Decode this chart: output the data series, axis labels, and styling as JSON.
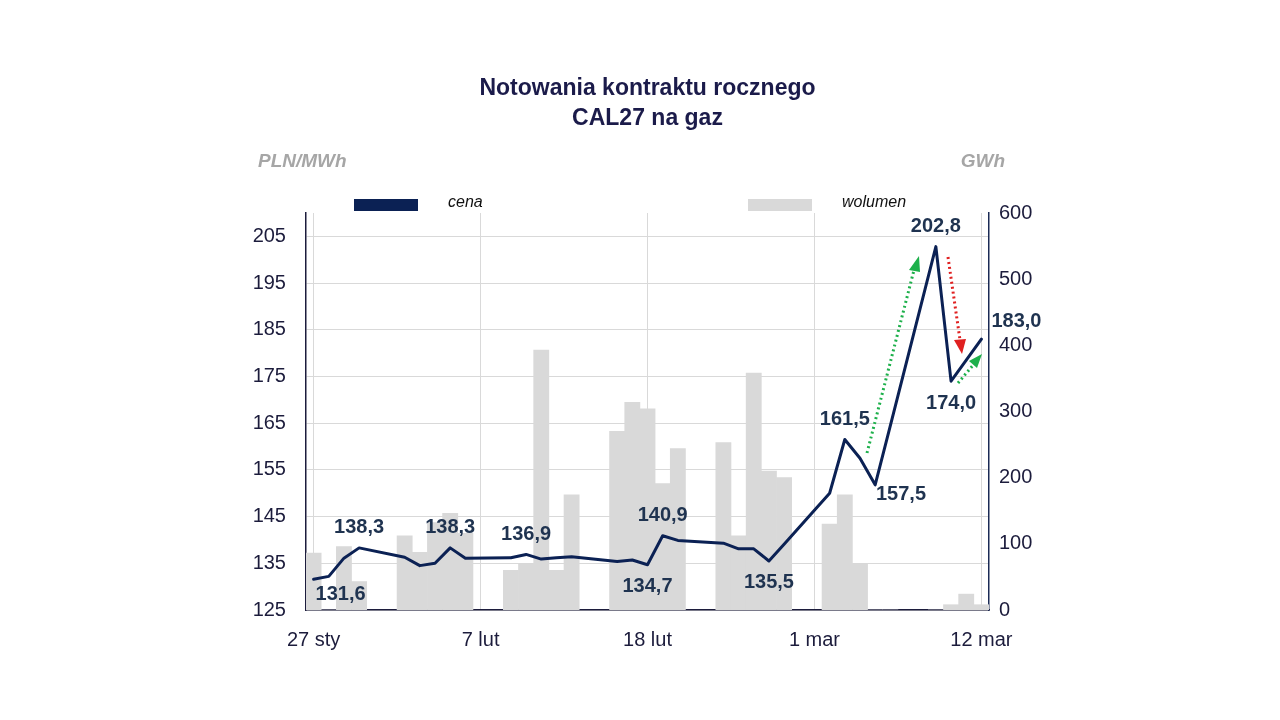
{
  "chart_data": {
    "type": "bar",
    "title": "Notowania kontraktu rocznego\nCAL27 na gaz",
    "ylabel": "PLN/MWh",
    "y2label": "GWh",
    "categories": [
      "27 sty",
      null,
      null,
      null,
      null,
      null,
      null,
      null,
      null,
      null,
      null,
      "7 lut",
      null,
      null,
      null,
      null,
      null,
      null,
      null,
      null,
      null,
      null,
      "18 lut",
      null,
      null,
      null,
      null,
      null,
      null,
      null,
      null,
      null,
      null,
      "1 mar",
      null,
      null,
      null,
      null,
      null,
      null,
      null,
      null,
      null,
      null,
      "12 mar"
    ],
    "series": [
      {
        "name": "cena",
        "type": "line",
        "axis": "y",
        "color": "#0b2154",
        "values": [
          131.6,
          132.2,
          136.1,
          138.3,
          null,
          null,
          136.3,
          134.5,
          135.0,
          138.3,
          136.1,
          null,
          null,
          136.2,
          136.9,
          135.9,
          136.2,
          136.4,
          null,
          null,
          135.4,
          135.7,
          134.7,
          140.9,
          139.9,
          null,
          null,
          139.3,
          138.1,
          138.1,
          135.5,
          139.1,
          null,
          null,
          150.0,
          161.5,
          157.5,
          151.8,
          164.5,
          null,
          null,
          202.8,
          174.0,
          178.5,
          183.0
        ],
        "value_labels": [
          "131,6",
          null,
          null,
          "138,3",
          null,
          null,
          null,
          null,
          null,
          "138,3",
          null,
          null,
          null,
          null,
          "136,9",
          null,
          null,
          null,
          null,
          null,
          null,
          null,
          "134,7",
          "140,9",
          null,
          null,
          null,
          null,
          null,
          null,
          "135,5",
          null,
          null,
          null,
          null,
          "161,5",
          "157,5",
          null,
          null,
          null,
          null,
          "202,8",
          "174,0",
          null,
          "183,0"
        ]
      },
      {
        "name": "wolumen",
        "axis": "y2",
        "color": "#d9d9d9",
        "values": [
          86,
          0,
          96,
          43,
          null,
          null,
          112,
          87,
          132,
          146,
          116,
          null,
          null,
          60,
          70,
          393,
          60,
          174,
          null,
          null,
          270,
          314,
          304,
          191,
          244,
          null,
          null,
          253,
          112,
          358,
          210,
          200,
          null,
          null,
          130,
          174,
          70,
          0,
          0,
          null,
          null,
          0,
          8,
          24,
          8
        ]
      }
    ],
    "ylim": [
      125,
      210
    ],
    "yticks": [
      125,
      135,
      145,
      155,
      165,
      175,
      185,
      195,
      205
    ],
    "y2lim": [
      0,
      600
    ],
    "y2ticks": [
      0,
      100,
      200,
      300,
      400,
      500,
      600
    ],
    "grid": true,
    "legend": "top",
    "marker": "none",
    "line_style": "solid"
  }
}
